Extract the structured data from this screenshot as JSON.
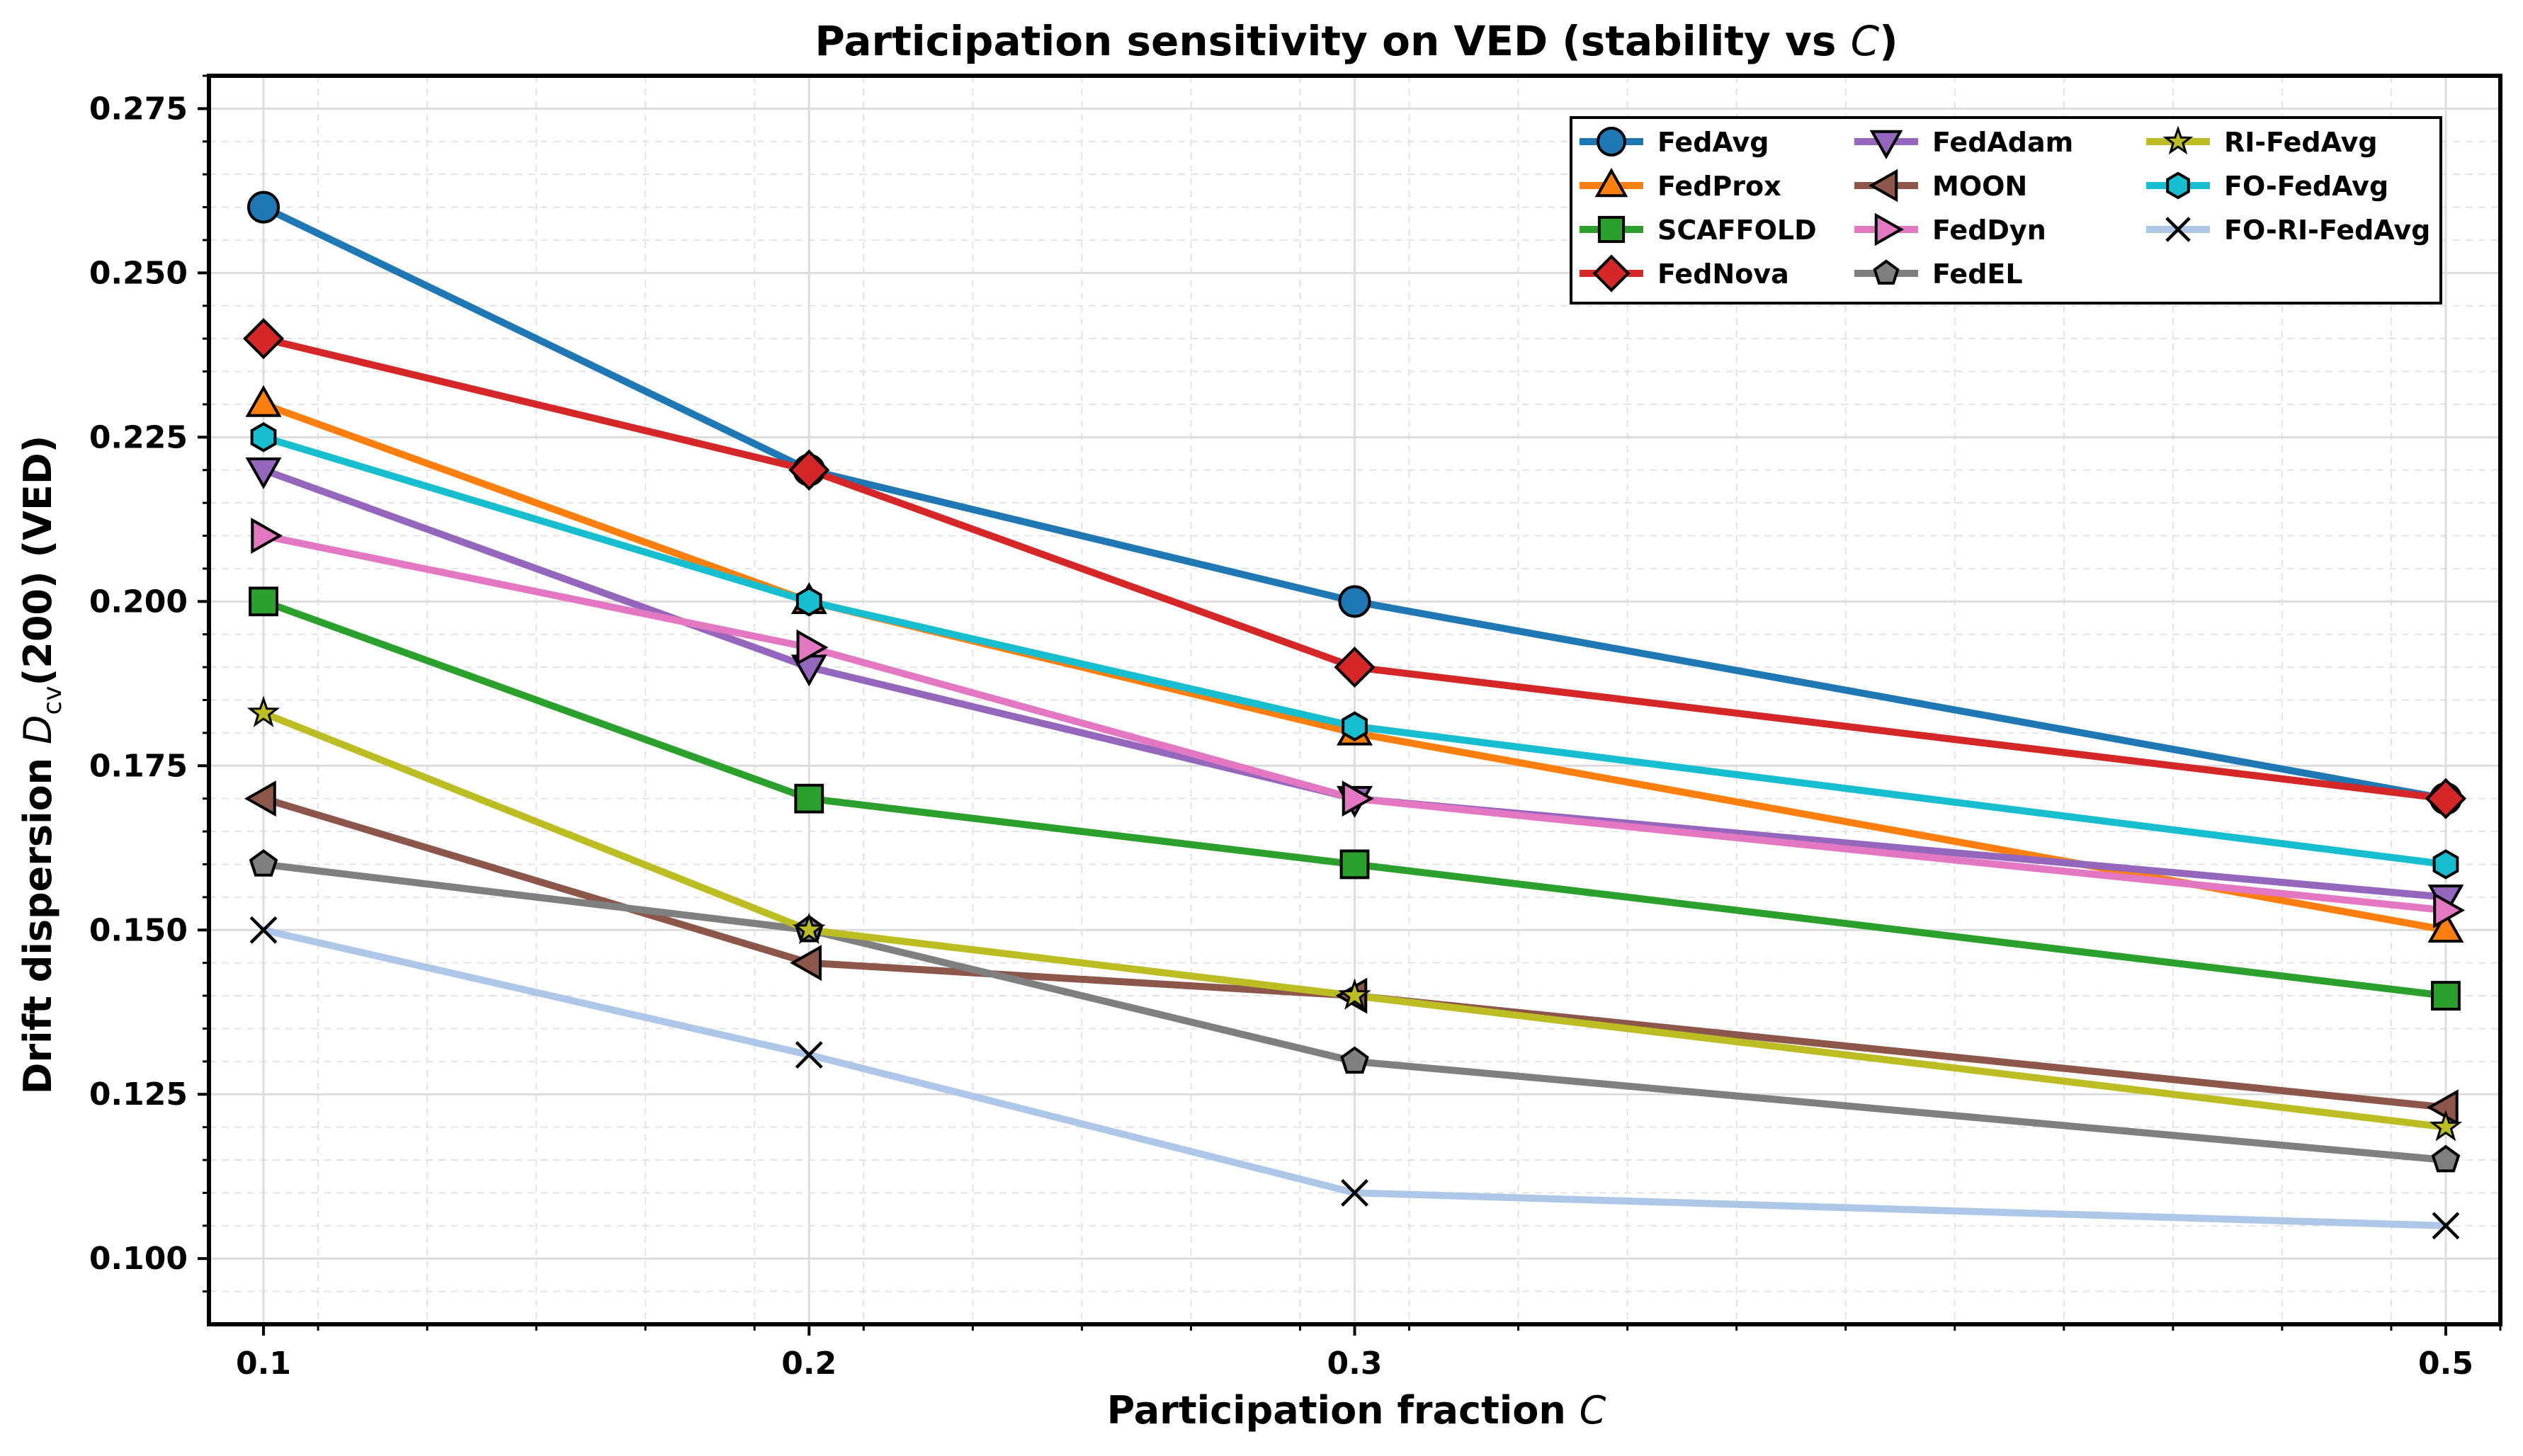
{
  "chart_data": {
    "type": "line",
    "title_main": "Participation sensitivity on VED (stability vs ",
    "title_var": "C",
    "title_end": ")",
    "xlabel_main": "Participation fraction ",
    "xlabel_var": "C",
    "ylabel_pre": "Drift dispersion ",
    "ylabel_D": "D",
    "ylabel_sub": "cv",
    "ylabel_post": "(200) (VED)",
    "x": [
      0.1,
      0.2,
      0.3,
      0.5
    ],
    "x_tick_labels": [
      "0.1",
      "0.2",
      "0.3",
      "0.5"
    ],
    "xlim": [
      0.09,
      0.51
    ],
    "ylim": [
      0.09,
      0.28
    ],
    "y_ticks": [
      0.1,
      0.125,
      0.15,
      0.175,
      0.2,
      0.225,
      0.25,
      0.275
    ],
    "y_tick_labels": [
      "0.100",
      "0.125",
      "0.150",
      "0.175",
      "0.200",
      "0.225",
      "0.250",
      "0.275"
    ],
    "grid": true,
    "legend_position": "top-right",
    "series": [
      {
        "name": "FedAvg",
        "color": "#1f77b4",
        "marker": "circle",
        "values": [
          0.26,
          0.22,
          0.2,
          0.17
        ]
      },
      {
        "name": "FedProx",
        "color": "#ff7f0e",
        "marker": "triangle-up",
        "values": [
          0.23,
          0.2,
          0.18,
          0.15
        ]
      },
      {
        "name": "SCAFFOLD",
        "color": "#2ca02c",
        "marker": "square",
        "values": [
          0.2,
          0.17,
          0.16,
          0.14
        ]
      },
      {
        "name": "FedNova",
        "color": "#d62728",
        "marker": "diamond",
        "values": [
          0.24,
          0.22,
          0.19,
          0.17
        ]
      },
      {
        "name": "FedAdam",
        "color": "#9467bd",
        "marker": "triangle-down",
        "values": [
          0.22,
          0.19,
          0.17,
          0.155
        ]
      },
      {
        "name": "MOON",
        "color": "#8c564b",
        "marker": "triangle-left",
        "values": [
          0.17,
          0.145,
          0.14,
          0.123
        ]
      },
      {
        "name": "FedDyn",
        "color": "#e377c2",
        "marker": "triangle-right",
        "values": [
          0.21,
          0.193,
          0.17,
          0.153
        ]
      },
      {
        "name": "FedEL",
        "color": "#7f7f7f",
        "marker": "pentagon",
        "values": [
          0.16,
          0.15,
          0.13,
          0.115
        ]
      },
      {
        "name": "RI-FedAvg",
        "color": "#bcbd22",
        "marker": "star",
        "values": [
          0.183,
          0.15,
          0.14,
          0.12
        ]
      },
      {
        "name": "FO-FedAvg",
        "color": "#17becf",
        "marker": "hexagon",
        "values": [
          0.225,
          0.2,
          0.181,
          0.16
        ]
      },
      {
        "name": "FO-RI-FedAvg",
        "color": "#aec7e8",
        "marker": "x",
        "values": [
          0.15,
          0.131,
          0.11,
          0.105
        ]
      }
    ]
  }
}
